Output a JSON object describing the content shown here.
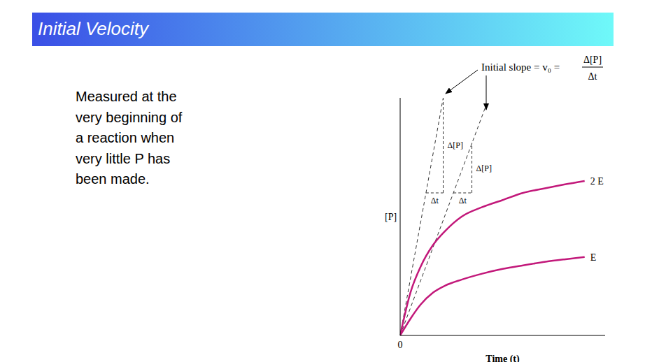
{
  "slide": {
    "title": "Initial Velocity",
    "text_lines": [
      "Measured at the",
      "very beginning of",
      "a reaction when",
      "very little P has",
      "been made."
    ]
  },
  "chart_data": {
    "type": "line",
    "x_label": "Time (t)",
    "y_label": "[P]",
    "x": [
      0,
      0.5,
      1,
      1.6,
      2.2,
      3,
      4,
      5,
      6,
      7.1,
      8,
      9
    ],
    "series": [
      {
        "name": "2 E",
        "color": "#c2187a",
        "values": [
          0,
          1.8,
          2.9,
          3.8,
          4.4,
          5.0,
          5.4,
          5.7,
          6.0,
          6.2,
          6.35,
          6.5
        ]
      },
      {
        "name": "E",
        "color": "#c2187a",
        "values": [
          0,
          0.7,
          1.3,
          1.8,
          2.1,
          2.35,
          2.6,
          2.8,
          2.95,
          3.1,
          3.2,
          3.3
        ]
      }
    ],
    "xlim": [
      0,
      10
    ],
    "ylim": [
      0,
      10
    ],
    "xticks": [
      0
    ],
    "tick_labels": "x",
    "grid": false,
    "tangents": [
      {
        "x": [
          0,
          2.1
        ],
        "y": [
          0,
          10
        ],
        "line_style": "dashed"
      },
      {
        "x": [
          0,
          4.2
        ],
        "y": [
          0,
          9.7
        ],
        "line_style": "dashed"
      }
    ],
    "triangles": [
      {
        "x": [
          1.26,
          2.1
        ],
        "y": [
          6.0,
          10
        ],
        "dy_label": "Δ[P]",
        "dx_label": "Δt"
      },
      {
        "x": [
          2.6,
          3.5
        ],
        "y": [
          6.0,
          8.1
        ],
        "dy_label": "Δ[P]",
        "dx_label": "Δt"
      }
    ],
    "annotation": {
      "text": "Initial slope = v₀ =",
      "numerator": "Δ[P]",
      "denominator": "Δt"
    }
  }
}
